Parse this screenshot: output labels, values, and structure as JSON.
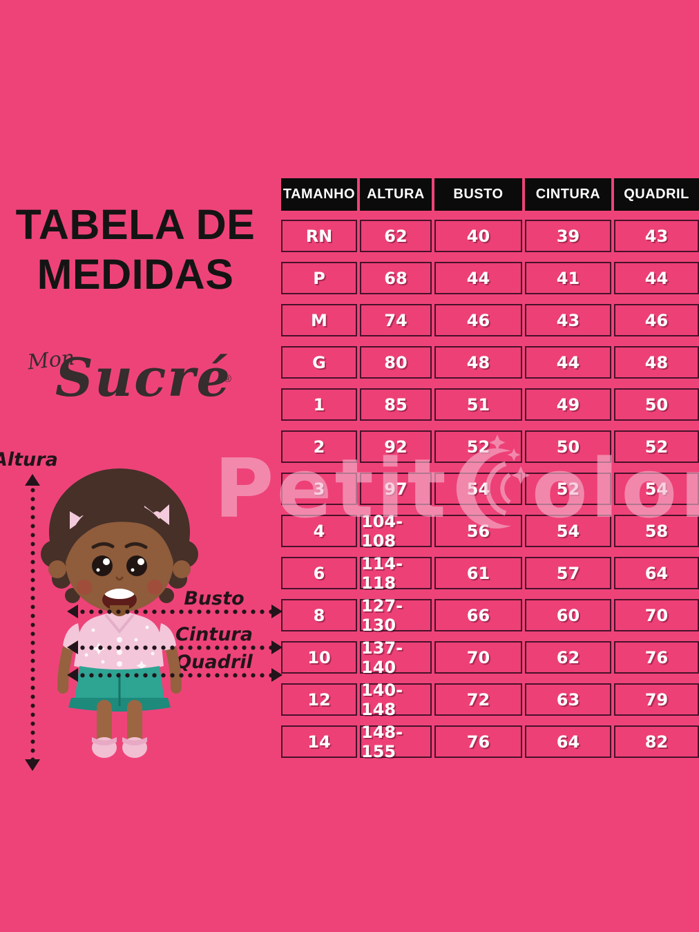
{
  "title": {
    "line1": "TABELA DE",
    "line2": "MEDIDAS"
  },
  "logo": {
    "prefix": "Mon",
    "name": "Sucré",
    "registered": "®"
  },
  "figure": {
    "height_label": "Altura",
    "bust_label": "Busto",
    "waist_label": "Cintura",
    "hip_label": "Quadril"
  },
  "watermark": {
    "part1": "Petit",
    "part2": "olorê",
    "icon": "crescent-moon-stars-icon"
  },
  "chart_data": {
    "type": "table",
    "title": "TABELA DE MEDIDAS",
    "columns": [
      "TAMANHO",
      "ALTURA",
      "BUSTO",
      "CINTURA",
      "QUADRIL"
    ],
    "rows": [
      [
        "RN",
        "62",
        "40",
        "39",
        "43"
      ],
      [
        "P",
        "68",
        "44",
        "41",
        "44"
      ],
      [
        "M",
        "74",
        "46",
        "43",
        "46"
      ],
      [
        "G",
        "80",
        "48",
        "44",
        "48"
      ],
      [
        "1",
        "85",
        "51",
        "49",
        "50"
      ],
      [
        "2",
        "92",
        "52",
        "50",
        "52"
      ],
      [
        "3",
        "97",
        "54",
        "52",
        "54"
      ],
      [
        "4",
        "104-108",
        "56",
        "54",
        "58"
      ],
      [
        "6",
        "114-118",
        "61",
        "57",
        "64"
      ],
      [
        "8",
        "127-130",
        "66",
        "60",
        "70"
      ],
      [
        "10",
        "137-140",
        "70",
        "62",
        "76"
      ],
      [
        "12",
        "140-148",
        "72",
        "63",
        "79"
      ],
      [
        "14",
        "148-155",
        "76",
        "64",
        "82"
      ]
    ]
  },
  "colors": {
    "background": "#EE4379",
    "header_bg": "#0B0B0B",
    "header_text": "#FFFFFF",
    "cell_bg": "#ED4076",
    "cell_border": "#47112A",
    "cell_text": "#FFFFFF",
    "title_text": "#141414",
    "logo_text": "#352D2E",
    "arrow_color": "#22141A",
    "watermark_pink": "#F5B5CE"
  }
}
